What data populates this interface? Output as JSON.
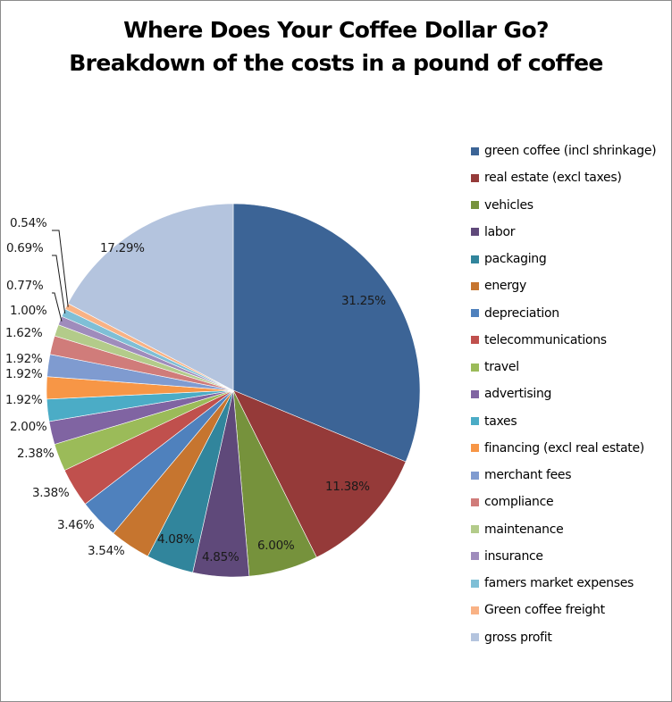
{
  "chart": {
    "title_line1": "Where Does Your Coffee Dollar Go?",
    "title_line2": "Breakdown of the costs in a pound of coffee"
  },
  "chart_data": {
    "type": "pie",
    "title": "Where Does Your Coffee Dollar Go? Breakdown of the costs in a pound of coffee",
    "legend_position": "right",
    "start_angle_deg": 0,
    "direction": "clockwise",
    "categories": [
      "green coffee (incl shrinkage)",
      "real estate (excl taxes)",
      "vehicles",
      "labor",
      "packaging",
      "energy",
      "depreciation",
      "telecommunications",
      "travel",
      "advertising",
      "taxes",
      "financing (excl real estate)",
      "merchant fees",
      "compliance",
      "maintenance",
      "insurance",
      "famers market expenses",
      "Green coffee freight",
      "gross profit"
    ],
    "values": [
      31.25,
      11.38,
      6.0,
      4.85,
      4.08,
      3.54,
      3.46,
      3.38,
      2.38,
      2.0,
      1.92,
      1.92,
      1.92,
      1.62,
      1.0,
      0.77,
      0.69,
      0.54,
      17.29
    ],
    "labels": [
      "31.25%",
      "11.38%",
      "6.00%",
      "4.85%",
      "4.08%",
      "3.54%",
      "3.46%",
      "3.38%",
      "2.38%",
      "2.00%",
      "1.92%",
      "1.92%",
      "1.92%",
      "1.62%",
      "1.00%",
      "0.77%",
      "0.69%",
      "0.54%",
      "17.29%"
    ],
    "colors": [
      "#3c6496",
      "#953a39",
      "#76923c",
      "#5f497a",
      "#31859c",
      "#c6752f",
      "#4f81bd",
      "#c0504d",
      "#9bbb59",
      "#8064a2",
      "#4bacc6",
      "#f79646",
      "#7f9bd0",
      "#d07c7a",
      "#b3cb8a",
      "#9f8cbc",
      "#7fbfd6",
      "#f9b285",
      "#b4c4de"
    ]
  }
}
